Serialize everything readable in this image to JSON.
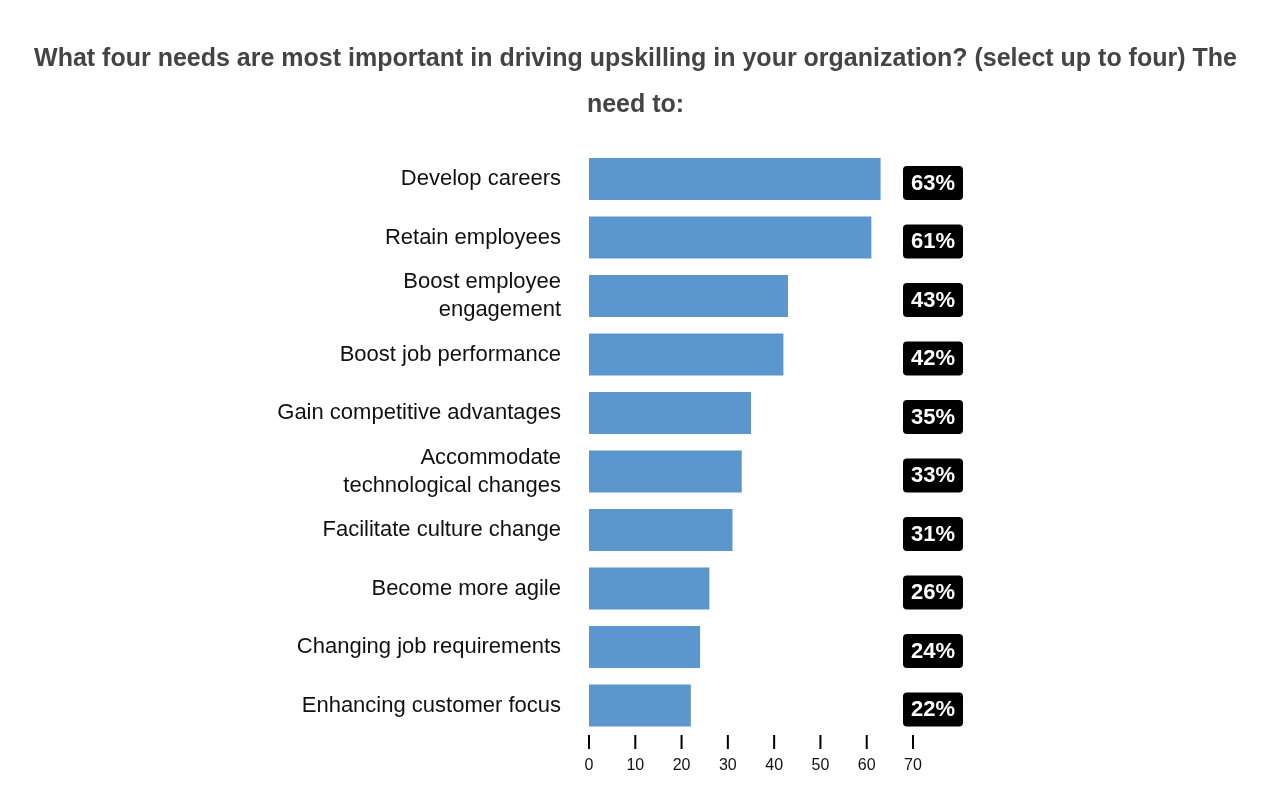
{
  "chart_data": {
    "type": "bar",
    "orientation": "horizontal",
    "title": "What four needs are most important in driving upskilling in your organization? (select up to four) The need to:",
    "categories": [
      "Develop careers",
      "Retain employees",
      "Boost employee\nengagement",
      "Boost job performance",
      "Gain competitive advantages",
      "Accommodate\ntechnological changes",
      "Facilitate culture change",
      "Become more agile",
      "Changing job requirements",
      "Enhancing customer focus"
    ],
    "values": [
      63,
      61,
      43,
      42,
      35,
      33,
      31,
      26,
      24,
      22
    ],
    "value_labels": [
      "63%",
      "61%",
      "43%",
      "42%",
      "35%",
      "33%",
      "31%",
      "26%",
      "24%",
      "22%"
    ],
    "color": "#5b96cf",
    "xlim": [
      0,
      70
    ],
    "xticks": [
      0,
      10,
      20,
      30,
      40,
      50,
      60,
      70
    ]
  }
}
